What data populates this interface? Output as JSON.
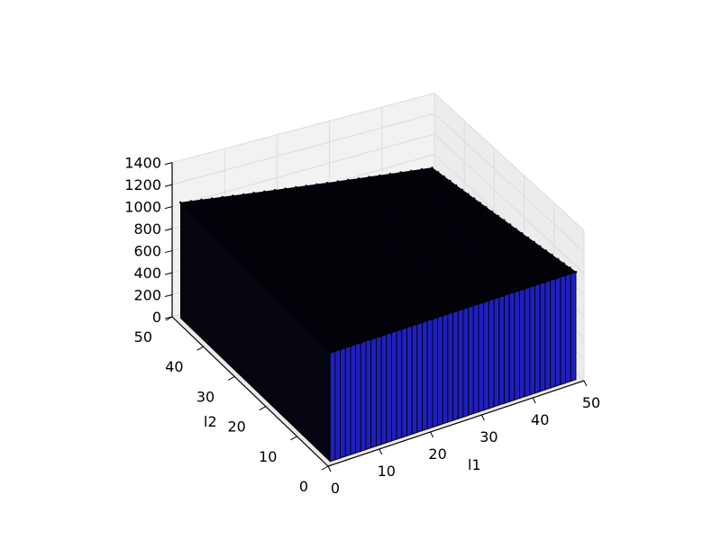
{
  "chart_data": {
    "type": "bar3d",
    "xlabel": "l1",
    "ylabel": "l2",
    "zlabel": "",
    "x_ticks": [
      0,
      10,
      20,
      30,
      40,
      50
    ],
    "y_ticks": [
      0,
      10,
      20,
      30,
      40,
      50
    ],
    "z_ticks": [
      0,
      200,
      400,
      600,
      800,
      1000,
      1200,
      1400
    ],
    "xlim": [
      0,
      50
    ],
    "ylim": [
      0,
      50
    ],
    "zlim": [
      0,
      1400
    ],
    "grid": true,
    "bar_color": "#1f1fbf",
    "edge_color": "#000000",
    "surface": {
      "x_range": [
        1,
        49
      ],
      "y_range": [
        1,
        49
      ],
      "z_at_l1_min_l2_min": 940,
      "z_at_l1_max_l2_min": 1000,
      "z_at_l1_min_l2_max": 1050,
      "z_at_l1_max_l2_max": 710
    }
  }
}
